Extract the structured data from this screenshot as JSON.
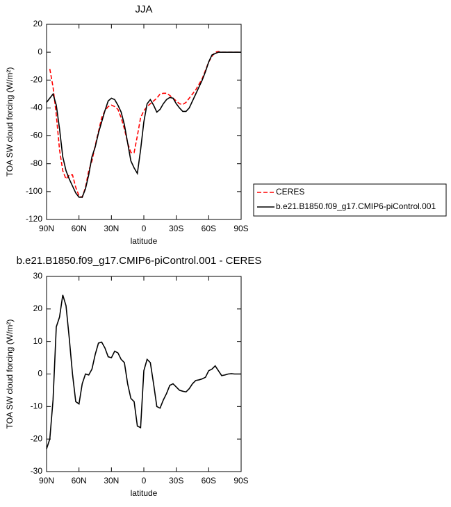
{
  "chart_data": [
    {
      "type": "line",
      "title": "JJA",
      "xlabel": "latitude",
      "ylabel": "TOA SW cloud forcing (W/m²)",
      "x": [
        90,
        87,
        84,
        81,
        78,
        75,
        72,
        69,
        66,
        63,
        60,
        57,
        54,
        51,
        48,
        45,
        42,
        39,
        36,
        33,
        30,
        27,
        24,
        21,
        18,
        15,
        12,
        9,
        6,
        3,
        0,
        -3,
        -6,
        -9,
        -12,
        -15,
        -18,
        -21,
        -24,
        -27,
        -30,
        -33,
        -36,
        -39,
        -42,
        -45,
        -48,
        -51,
        -54,
        -57,
        -60,
        -63,
        -66,
        -69,
        -72,
        -75,
        -78,
        -81,
        -84,
        -87,
        -90
      ],
      "series": [
        {
          "name": "CERES",
          "color": "#ff0000",
          "linestyle": "dashed",
          "values": [
            null,
            -12,
            -25,
            -45,
            -70,
            -85,
            -91,
            -88,
            -88,
            -97,
            -103,
            -104,
            -97,
            -85,
            -78,
            -67,
            -57,
            -47,
            -42,
            -39,
            -38,
            -39,
            -41,
            -47,
            -55,
            -65,
            -72,
            -72,
            -60,
            -47,
            -42,
            -39,
            -37,
            -35,
            -33,
            -30,
            -29.5,
            -29.5,
            -31,
            -33,
            -35,
            -37,
            -37.5,
            -36,
            -33,
            -30,
            -27,
            -23,
            -19,
            -13,
            -7,
            -3,
            0,
            0.5,
            0,
            0,
            0,
            0,
            0,
            0,
            0
          ]
        },
        {
          "name": "b.e21.B1850.f09_g17.CMIP6-piControl.001",
          "color": "#000000",
          "linestyle": "solid",
          "values": [
            -36,
            -33,
            -30,
            -38,
            -55,
            -75,
            -85,
            -91,
            -96,
            -101,
            -104,
            -104,
            -98,
            -88,
            -75,
            -68,
            -58,
            -50,
            -42,
            -35,
            -33,
            -34,
            -38,
            -43,
            -52,
            -65,
            -78,
            -83,
            -87,
            -70,
            -50,
            -37,
            -34,
            -38,
            -43,
            -41,
            -37,
            -34,
            -32.5,
            -33,
            -37,
            -40,
            -42.5,
            -42.5,
            -40,
            -35,
            -30,
            -25,
            -20,
            -14,
            -7,
            -2,
            -1,
            0,
            0,
            0,
            0,
            0,
            0,
            0,
            0
          ]
        }
      ],
      "xlim": [
        90,
        -90
      ],
      "xticks": [
        {
          "value": 90,
          "label": "90N"
        },
        {
          "value": 60,
          "label": "60N"
        },
        {
          "value": 30,
          "label": "30N"
        },
        0,
        {
          "value": -30,
          "label": "30S"
        },
        {
          "value": -60,
          "label": "60S"
        },
        {
          "value": -90,
          "label": "90S"
        }
      ],
      "ylim": [
        -120,
        20
      ],
      "yticks": [
        -120,
        -100,
        -80,
        -60,
        -40,
        -20,
        0,
        20
      ],
      "legend": "right"
    },
    {
      "type": "line",
      "title": "b.e21.B1850.f09_g17.CMIP6-piControl.001 - CERES",
      "xlabel": "latitude",
      "ylabel": "TOA SW cloud forcing (W/m²)",
      "x": [
        90,
        87,
        84,
        81,
        78,
        75,
        72,
        69,
        66,
        63,
        60,
        57,
        54,
        51,
        48,
        45,
        42,
        39,
        36,
        33,
        30,
        27,
        24,
        21,
        18,
        15,
        12,
        9,
        6,
        3,
        0,
        -3,
        -6,
        -9,
        -12,
        -15,
        -18,
        -21,
        -24,
        -27,
        -30,
        -33,
        -36,
        -39,
        -42,
        -45,
        -48,
        -51,
        -54,
        -57,
        -60,
        -63,
        -66,
        -69,
        -72,
        -75,
        -78,
        -81,
        -84,
        -87,
        -90
      ],
      "series": [
        {
          "color": "#000000",
          "linestyle": "solid",
          "values": [
            -23,
            -20,
            -8,
            14.5,
            17.5,
            24.3,
            21,
            11,
            0,
            -8.5,
            -9.2,
            -3,
            0,
            -0.3,
            1.5,
            6,
            9.5,
            9.8,
            8,
            5.3,
            5,
            7,
            6.5,
            4.5,
            3.5,
            -3,
            -7.5,
            -8.5,
            -16,
            -16.5,
            1,
            4.5,
            3.5,
            -3,
            -10,
            -10.5,
            -8,
            -6,
            -3.5,
            -3,
            -4,
            -5,
            -5.3,
            -5.5,
            -4.5,
            -3,
            -2,
            -1.8,
            -1.5,
            -1,
            1,
            1.5,
            2.5,
            1,
            -0.5,
            -0.3,
            0,
            0.1,
            0,
            0,
            0
          ]
        }
      ],
      "xlim": [
        90,
        -90
      ],
      "xticks": [
        {
          "value": 90,
          "label": "90N"
        },
        {
          "value": 60,
          "label": "60N"
        },
        {
          "value": 30,
          "label": "30N"
        },
        0,
        {
          "value": -30,
          "label": "30S"
        },
        {
          "value": -60,
          "label": "60S"
        },
        {
          "value": -90,
          "label": "90S"
        }
      ],
      "ylim": [
        -30,
        30
      ],
      "yticks": [
        -30,
        -20,
        -10,
        0,
        10,
        20,
        30
      ]
    }
  ]
}
